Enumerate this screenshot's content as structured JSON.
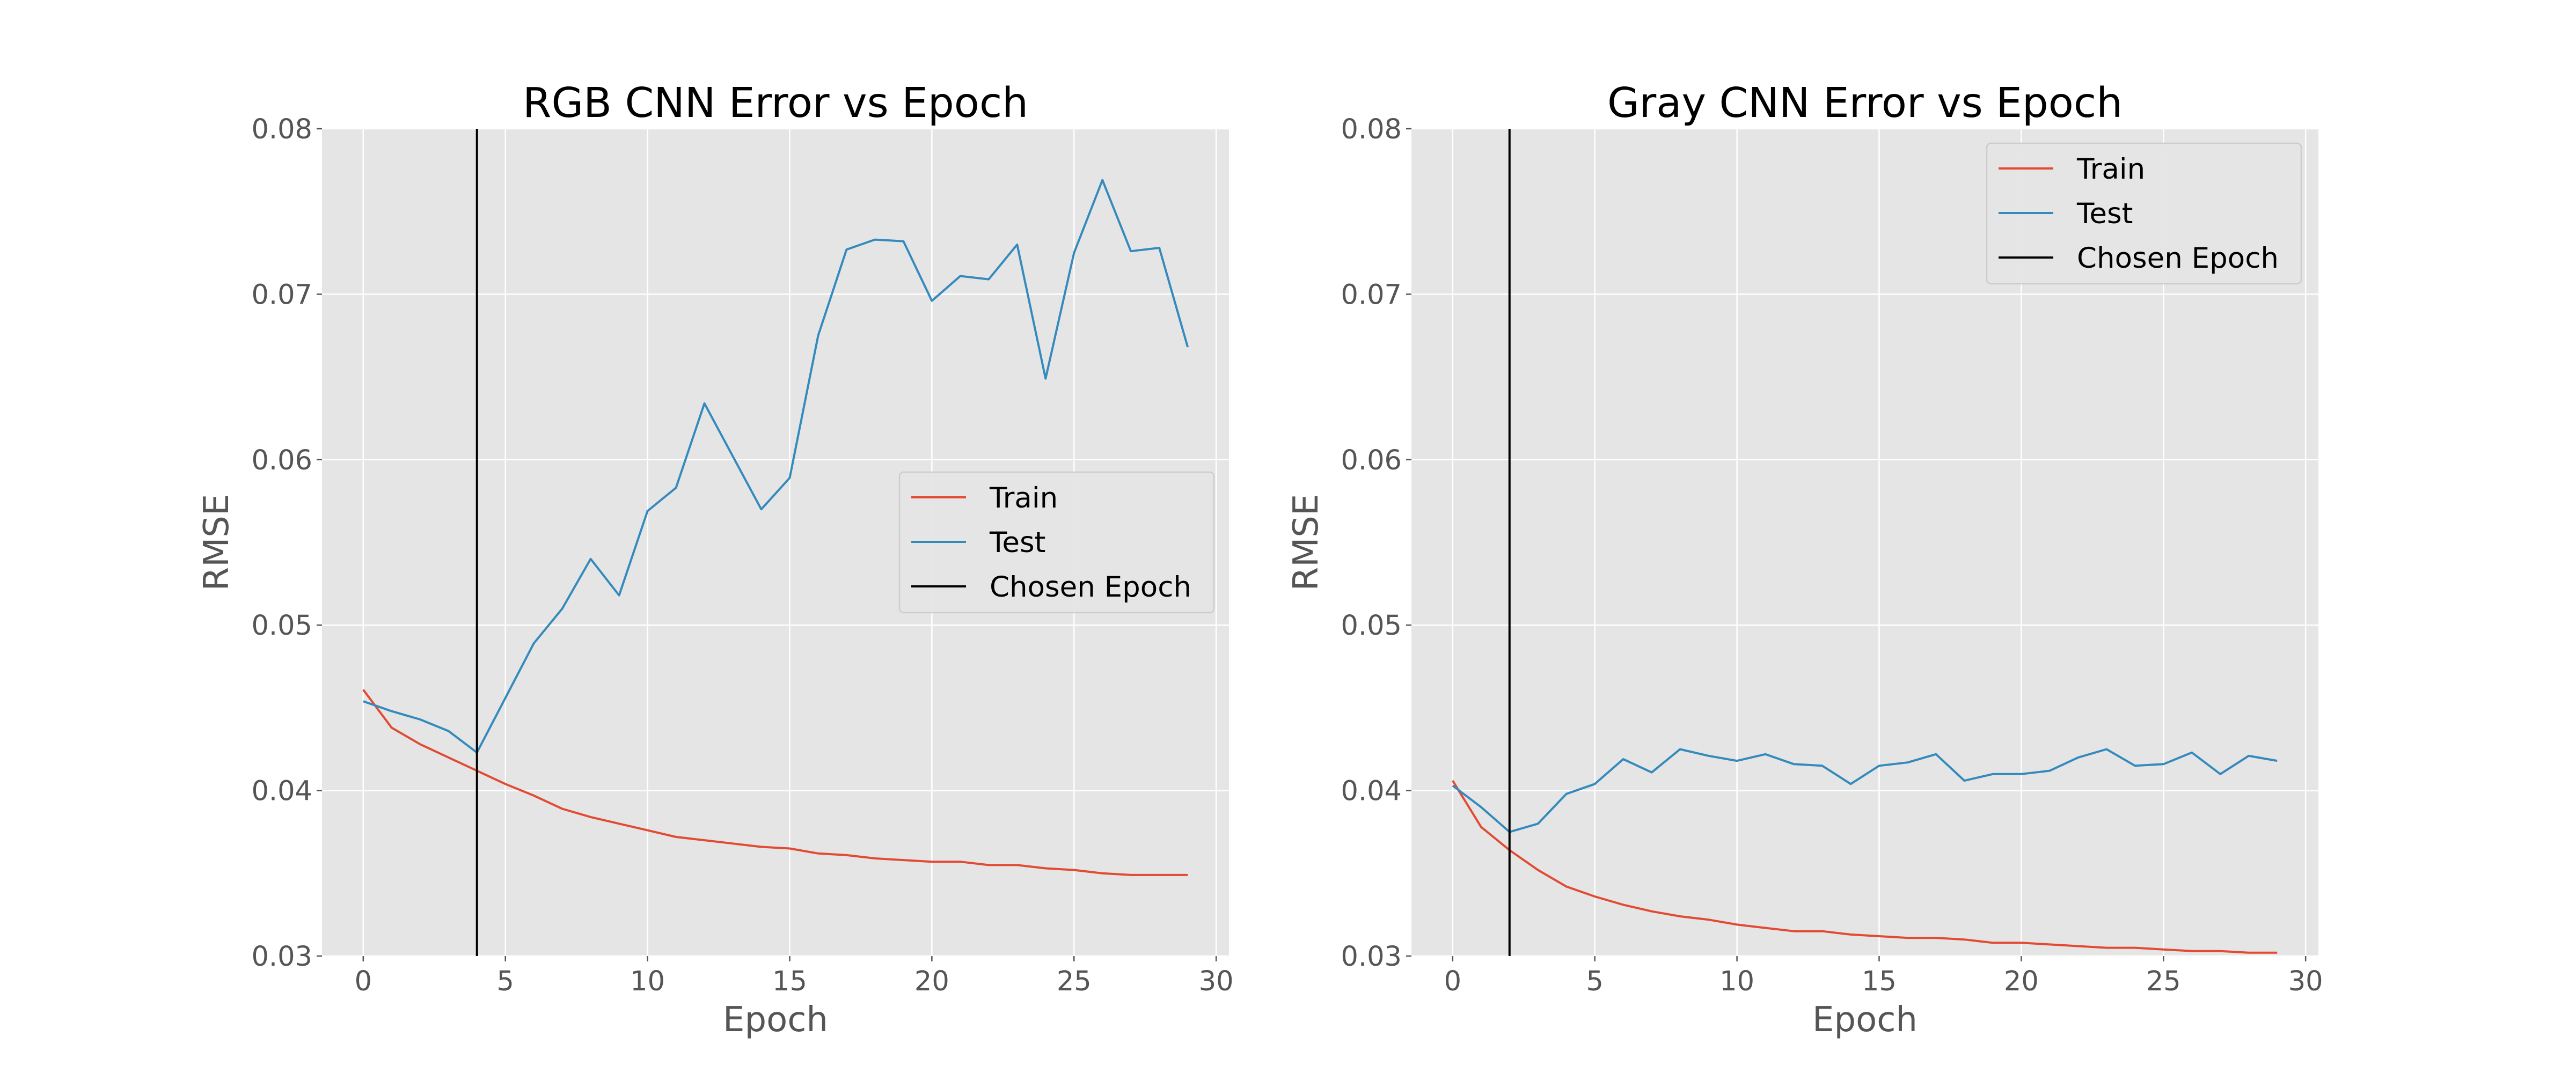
{
  "chart_data": [
    {
      "type": "line",
      "title": "RGB CNN Error vs Epoch",
      "xlabel": "Epoch",
      "ylabel": "RMSE",
      "xlim": [
        -1.45,
        30.45
      ],
      "ylim": [
        0.03,
        0.08
      ],
      "xticks": [
        0,
        5,
        10,
        15,
        20,
        25,
        30
      ],
      "yticks": [
        0.03,
        0.04,
        0.05,
        0.06,
        0.07,
        0.08
      ],
      "grid": true,
      "legend_placement": "center-right",
      "x": [
        0,
        1,
        2,
        3,
        4,
        5,
        6,
        7,
        8,
        9,
        10,
        11,
        12,
        13,
        14,
        15,
        16,
        17,
        18,
        19,
        20,
        21,
        22,
        23,
        24,
        25,
        26,
        27,
        28,
        29
      ],
      "series": [
        {
          "name": "Train",
          "color": "#e24a33",
          "values": [
            0.0461,
            0.0438,
            0.0428,
            0.042,
            0.0412,
            0.0404,
            0.0397,
            0.0389,
            0.0384,
            0.038,
            0.0376,
            0.0372,
            0.037,
            0.0368,
            0.0366,
            0.0365,
            0.0362,
            0.0361,
            0.0359,
            0.0358,
            0.0357,
            0.0357,
            0.0355,
            0.0355,
            0.0353,
            0.0352,
            0.035,
            0.0349,
            0.0349,
            0.0349
          ]
        },
        {
          "name": "Test",
          "color": "#348abd",
          "values": [
            0.0454,
            0.0448,
            0.0443,
            0.0436,
            0.0423,
            0.0456,
            0.0489,
            0.051,
            0.054,
            0.0518,
            0.0569,
            0.0583,
            0.0634,
            0.0602,
            0.057,
            0.0589,
            0.0675,
            0.0727,
            0.0733,
            0.0732,
            0.0696,
            0.0711,
            0.0709,
            0.073,
            0.0649,
            0.0725,
            0.0769,
            0.0726,
            0.0728,
            0.0668
          ]
        }
      ],
      "vline": {
        "name": "Chosen Epoch",
        "color": "#000000",
        "x": 4
      }
    },
    {
      "type": "line",
      "title": "Gray CNN Error vs Epoch",
      "xlabel": "Epoch",
      "ylabel": "RMSE",
      "xlim": [
        -1.45,
        30.45
      ],
      "ylim": [
        0.03,
        0.08
      ],
      "xticks": [
        0,
        5,
        10,
        15,
        20,
        25,
        30
      ],
      "yticks": [
        0.03,
        0.04,
        0.05,
        0.06,
        0.07,
        0.08
      ],
      "grid": true,
      "legend_placement": "top-right",
      "x": [
        0,
        1,
        2,
        3,
        4,
        5,
        6,
        7,
        8,
        9,
        10,
        11,
        12,
        13,
        14,
        15,
        16,
        17,
        18,
        19,
        20,
        21,
        22,
        23,
        24,
        25,
        26,
        27,
        28,
        29
      ],
      "series": [
        {
          "name": "Train",
          "color": "#e24a33",
          "values": [
            0.0406,
            0.0378,
            0.0364,
            0.0352,
            0.0342,
            0.0336,
            0.0331,
            0.0327,
            0.0324,
            0.0322,
            0.0319,
            0.0317,
            0.0315,
            0.0315,
            0.0313,
            0.0312,
            0.0311,
            0.0311,
            0.031,
            0.0308,
            0.0308,
            0.0307,
            0.0306,
            0.0305,
            0.0305,
            0.0304,
            0.0303,
            0.0303,
            0.0302,
            0.0302
          ]
        },
        {
          "name": "Test",
          "color": "#348abd",
          "values": [
            0.0403,
            0.039,
            0.0375,
            0.038,
            0.0398,
            0.0404,
            0.0419,
            0.0411,
            0.0425,
            0.0421,
            0.0418,
            0.0422,
            0.0416,
            0.0415,
            0.0404,
            0.0415,
            0.0417,
            0.0422,
            0.0406,
            0.041,
            0.041,
            0.0412,
            0.042,
            0.0425,
            0.0415,
            0.0416,
            0.0423,
            0.041,
            0.0421,
            0.0418
          ]
        }
      ],
      "vline": {
        "name": "Chosen Epoch",
        "color": "#000000",
        "x": 2
      }
    }
  ]
}
